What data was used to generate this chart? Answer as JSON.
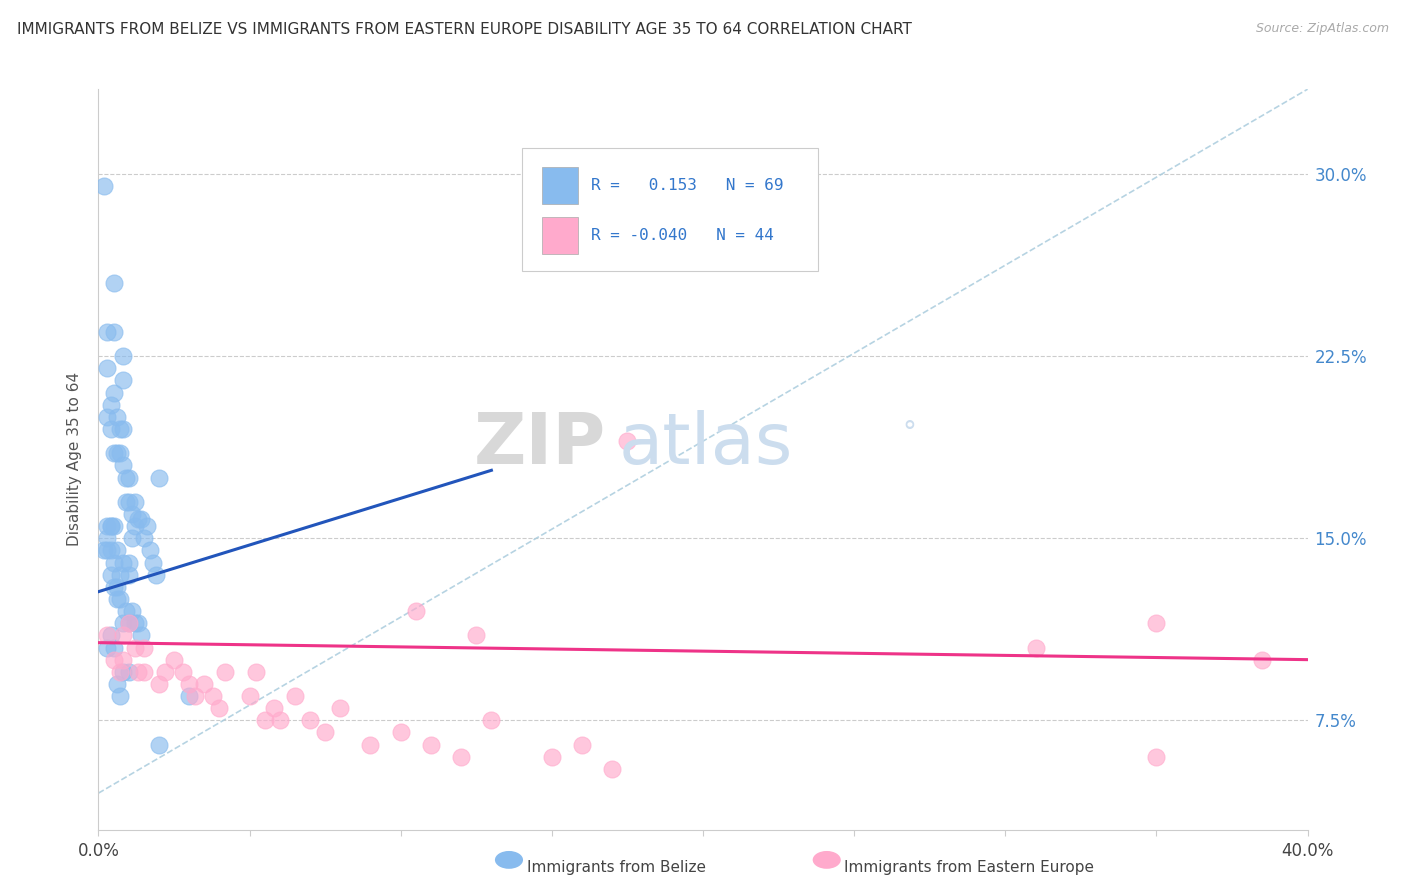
{
  "title": "IMMIGRANTS FROM BELIZE VS IMMIGRANTS FROM EASTERN EUROPE DISABILITY AGE 35 TO 64 CORRELATION CHART",
  "source": "Source: ZipAtlas.com",
  "ylabel_label": "Disability Age 35 to 64",
  "ytick_labels": [
    "7.5%",
    "15.0%",
    "22.5%",
    "30.0%"
  ],
  "ytick_values": [
    0.075,
    0.15,
    0.225,
    0.3
  ],
  "xmin": 0.0,
  "xmax": 0.4,
  "ymin": 0.03,
  "ymax": 0.335,
  "belize_color": "#88bbee",
  "eastern_color": "#ffaacc",
  "belize_line_color": "#2255bb",
  "eastern_line_color": "#ee3388",
  "dashed_line_color": "#aaccdd",
  "R_belize": 0.153,
  "N_belize": 69,
  "R_eastern": -0.04,
  "N_eastern": 44,
  "legend_label_belize": "Immigrants from Belize",
  "legend_label_eastern": "Immigrants from Eastern Europe",
  "watermark_zip": "ZIP",
  "watermark_atlas": "atlas",
  "watermark_dot": "°",
  "belize_x": [
    0.002,
    0.005,
    0.005,
    0.008,
    0.008,
    0.003,
    0.003,
    0.003,
    0.004,
    0.004,
    0.005,
    0.005,
    0.006,
    0.006,
    0.007,
    0.007,
    0.008,
    0.008,
    0.009,
    0.009,
    0.01,
    0.01,
    0.011,
    0.011,
    0.012,
    0.012,
    0.013,
    0.014,
    0.015,
    0.016,
    0.017,
    0.018,
    0.019,
    0.02,
    0.002,
    0.003,
    0.004,
    0.004,
    0.005,
    0.006,
    0.006,
    0.007,
    0.008,
    0.009,
    0.01,
    0.011,
    0.012,
    0.013,
    0.014,
    0.01,
    0.01,
    0.008,
    0.007,
    0.006,
    0.005,
    0.004,
    0.003,
    0.003,
    0.004,
    0.005,
    0.01,
    0.006,
    0.007,
    0.008,
    0.02,
    0.03,
    0.003,
    0.004,
    0.005
  ],
  "belize_y": [
    0.295,
    0.255,
    0.235,
    0.225,
    0.215,
    0.235,
    0.22,
    0.2,
    0.205,
    0.195,
    0.185,
    0.21,
    0.185,
    0.2,
    0.185,
    0.195,
    0.195,
    0.18,
    0.175,
    0.165,
    0.175,
    0.165,
    0.16,
    0.15,
    0.165,
    0.155,
    0.158,
    0.158,
    0.15,
    0.155,
    0.145,
    0.14,
    0.135,
    0.175,
    0.145,
    0.155,
    0.145,
    0.135,
    0.13,
    0.13,
    0.125,
    0.125,
    0.115,
    0.12,
    0.115,
    0.12,
    0.115,
    0.115,
    0.11,
    0.14,
    0.135,
    0.14,
    0.135,
    0.145,
    0.14,
    0.155,
    0.145,
    0.15,
    0.155,
    0.155,
    0.095,
    0.09,
    0.085,
    0.095,
    0.065,
    0.085,
    0.105,
    0.11,
    0.105
  ],
  "eastern_x": [
    0.003,
    0.005,
    0.007,
    0.008,
    0.008,
    0.01,
    0.012,
    0.013,
    0.015,
    0.015,
    0.02,
    0.022,
    0.025,
    0.028,
    0.03,
    0.032,
    0.035,
    0.038,
    0.04,
    0.042,
    0.05,
    0.052,
    0.055,
    0.058,
    0.06,
    0.065,
    0.07,
    0.075,
    0.08,
    0.09,
    0.1,
    0.11,
    0.12,
    0.13,
    0.15,
    0.16,
    0.17,
    0.31,
    0.35,
    0.105,
    0.125,
    0.175,
    0.35,
    0.385
  ],
  "eastern_y": [
    0.11,
    0.1,
    0.095,
    0.11,
    0.1,
    0.115,
    0.105,
    0.095,
    0.105,
    0.095,
    0.09,
    0.095,
    0.1,
    0.095,
    0.09,
    0.085,
    0.09,
    0.085,
    0.08,
    0.095,
    0.085,
    0.095,
    0.075,
    0.08,
    0.075,
    0.085,
    0.075,
    0.07,
    0.08,
    0.065,
    0.07,
    0.065,
    0.06,
    0.075,
    0.06,
    0.065,
    0.055,
    0.105,
    0.06,
    0.12,
    0.11,
    0.19,
    0.115,
    0.1
  ]
}
